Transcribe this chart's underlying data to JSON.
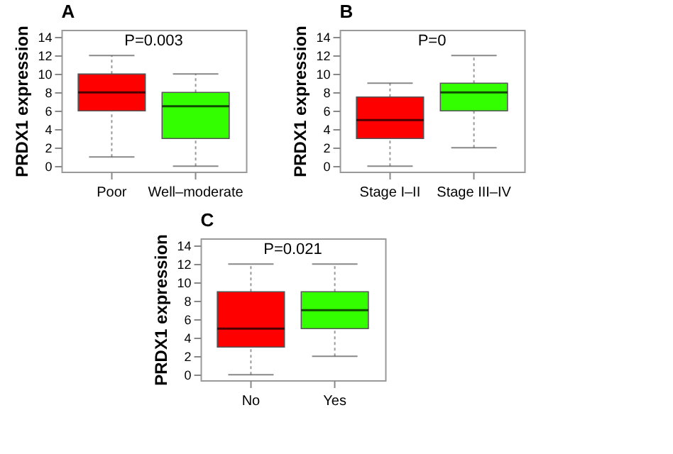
{
  "chart_data": [
    {
      "type": "box",
      "title": "A",
      "ylabel": "PRDX1 expression",
      "categories": [
        "Poor",
        "Well–moderate"
      ],
      "colors": [
        "#ff0000",
        "#33ff00"
      ],
      "ylim": [
        -0.6,
        14.8
      ],
      "yticks": [
        0,
        2,
        4,
        6,
        8,
        10,
        12,
        14
      ],
      "grid": false,
      "annotations": [
        "P=0.003"
      ],
      "boxes": [
        {
          "low": 1,
          "q1": 6,
          "median": 8,
          "q3": 10,
          "high": 12
        },
        {
          "low": 0,
          "q1": 3,
          "median": 6.5,
          "q3": 8,
          "high": 10
        }
      ]
    },
    {
      "type": "box",
      "title": "B",
      "ylabel": "PRDX1 expression",
      "categories": [
        "Stage I–II",
        "Stage III–IV"
      ],
      "colors": [
        "#ff0000",
        "#33ff00"
      ],
      "ylim": [
        -0.6,
        14.8
      ],
      "yticks": [
        0,
        2,
        4,
        6,
        8,
        10,
        12,
        14
      ],
      "grid": false,
      "annotations": [
        "P=0"
      ],
      "boxes": [
        {
          "low": 0,
          "q1": 3,
          "median": 5,
          "q3": 7.5,
          "high": 9
        },
        {
          "low": 2,
          "q1": 6,
          "median": 8,
          "q3": 9,
          "high": 12
        }
      ]
    },
    {
      "type": "box",
      "title": "C",
      "ylabel": "PRDX1 expression",
      "categories": [
        "No",
        "Yes"
      ],
      "colors": [
        "#ff0000",
        "#33ff00"
      ],
      "ylim": [
        -0.6,
        14.8
      ],
      "yticks": [
        0,
        2,
        4,
        6,
        8,
        10,
        12,
        14
      ],
      "grid": false,
      "annotations": [
        "P=0.021"
      ],
      "boxes": [
        {
          "low": 0,
          "q1": 3,
          "median": 5,
          "q3": 9,
          "high": 12
        },
        {
          "low": 2,
          "q1": 5,
          "median": 7,
          "q3": 9,
          "high": 12
        }
      ]
    }
  ]
}
